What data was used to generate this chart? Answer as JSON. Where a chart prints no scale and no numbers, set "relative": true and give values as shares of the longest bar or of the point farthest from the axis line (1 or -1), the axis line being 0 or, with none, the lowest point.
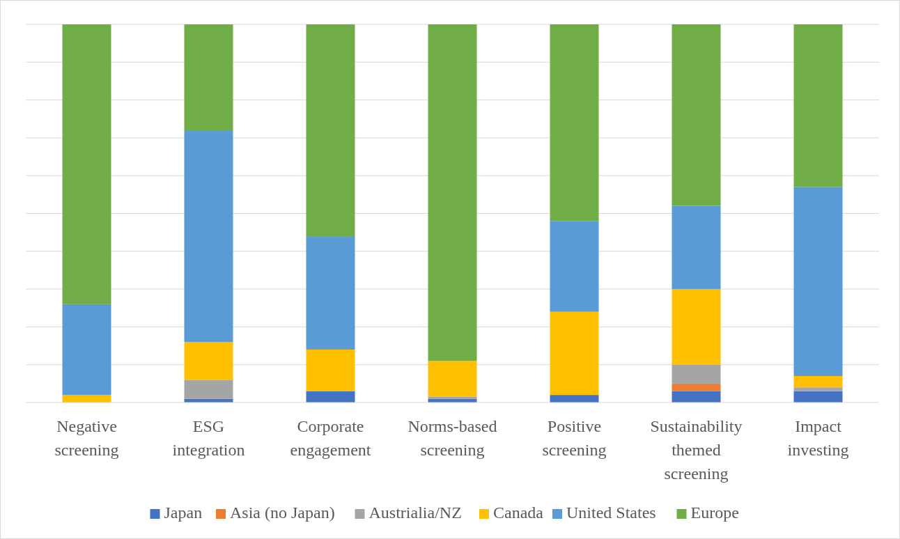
{
  "chart_data": {
    "type": "bar",
    "stacked": true,
    "relative": true,
    "grid": "y",
    "legend": "bottom",
    "categories": [
      "Negative screening",
      "ESG integration",
      "Corporate engagement",
      "Norms-based screening",
      "Positive screening",
      "Sustainability themed screening",
      "Impact investing"
    ],
    "series": [
      {
        "name": "Japan",
        "color": "#4472c4",
        "values": [
          0,
          0.01,
          0.03,
          0.01,
          0.02,
          0.03,
          0.03
        ]
      },
      {
        "name": "Asia (no Japan)",
        "color": "#ed7d31",
        "values": [
          0,
          0,
          0,
          0,
          0,
          0.02,
          0
        ]
      },
      {
        "name": "Austrialia/NZ",
        "color": "#a5a5a5",
        "values": [
          0,
          0.05,
          0,
          0.005,
          0,
          0.05,
          0.01
        ]
      },
      {
        "name": "Canada",
        "color": "#ffc000",
        "values": [
          0.02,
          0.1,
          0.11,
          0.095,
          0.22,
          0.2,
          0.03
        ]
      },
      {
        "name": "United States",
        "color": "#5b9bd5",
        "values": [
          0.24,
          0.56,
          0.3,
          0,
          0.24,
          0.22,
          0.5
        ]
      },
      {
        "name": "Europe",
        "color": "#70ad47",
        "values": [
          0.74,
          0.28,
          0.56,
          0.89,
          0.52,
          0.48,
          0.43
        ]
      }
    ]
  }
}
